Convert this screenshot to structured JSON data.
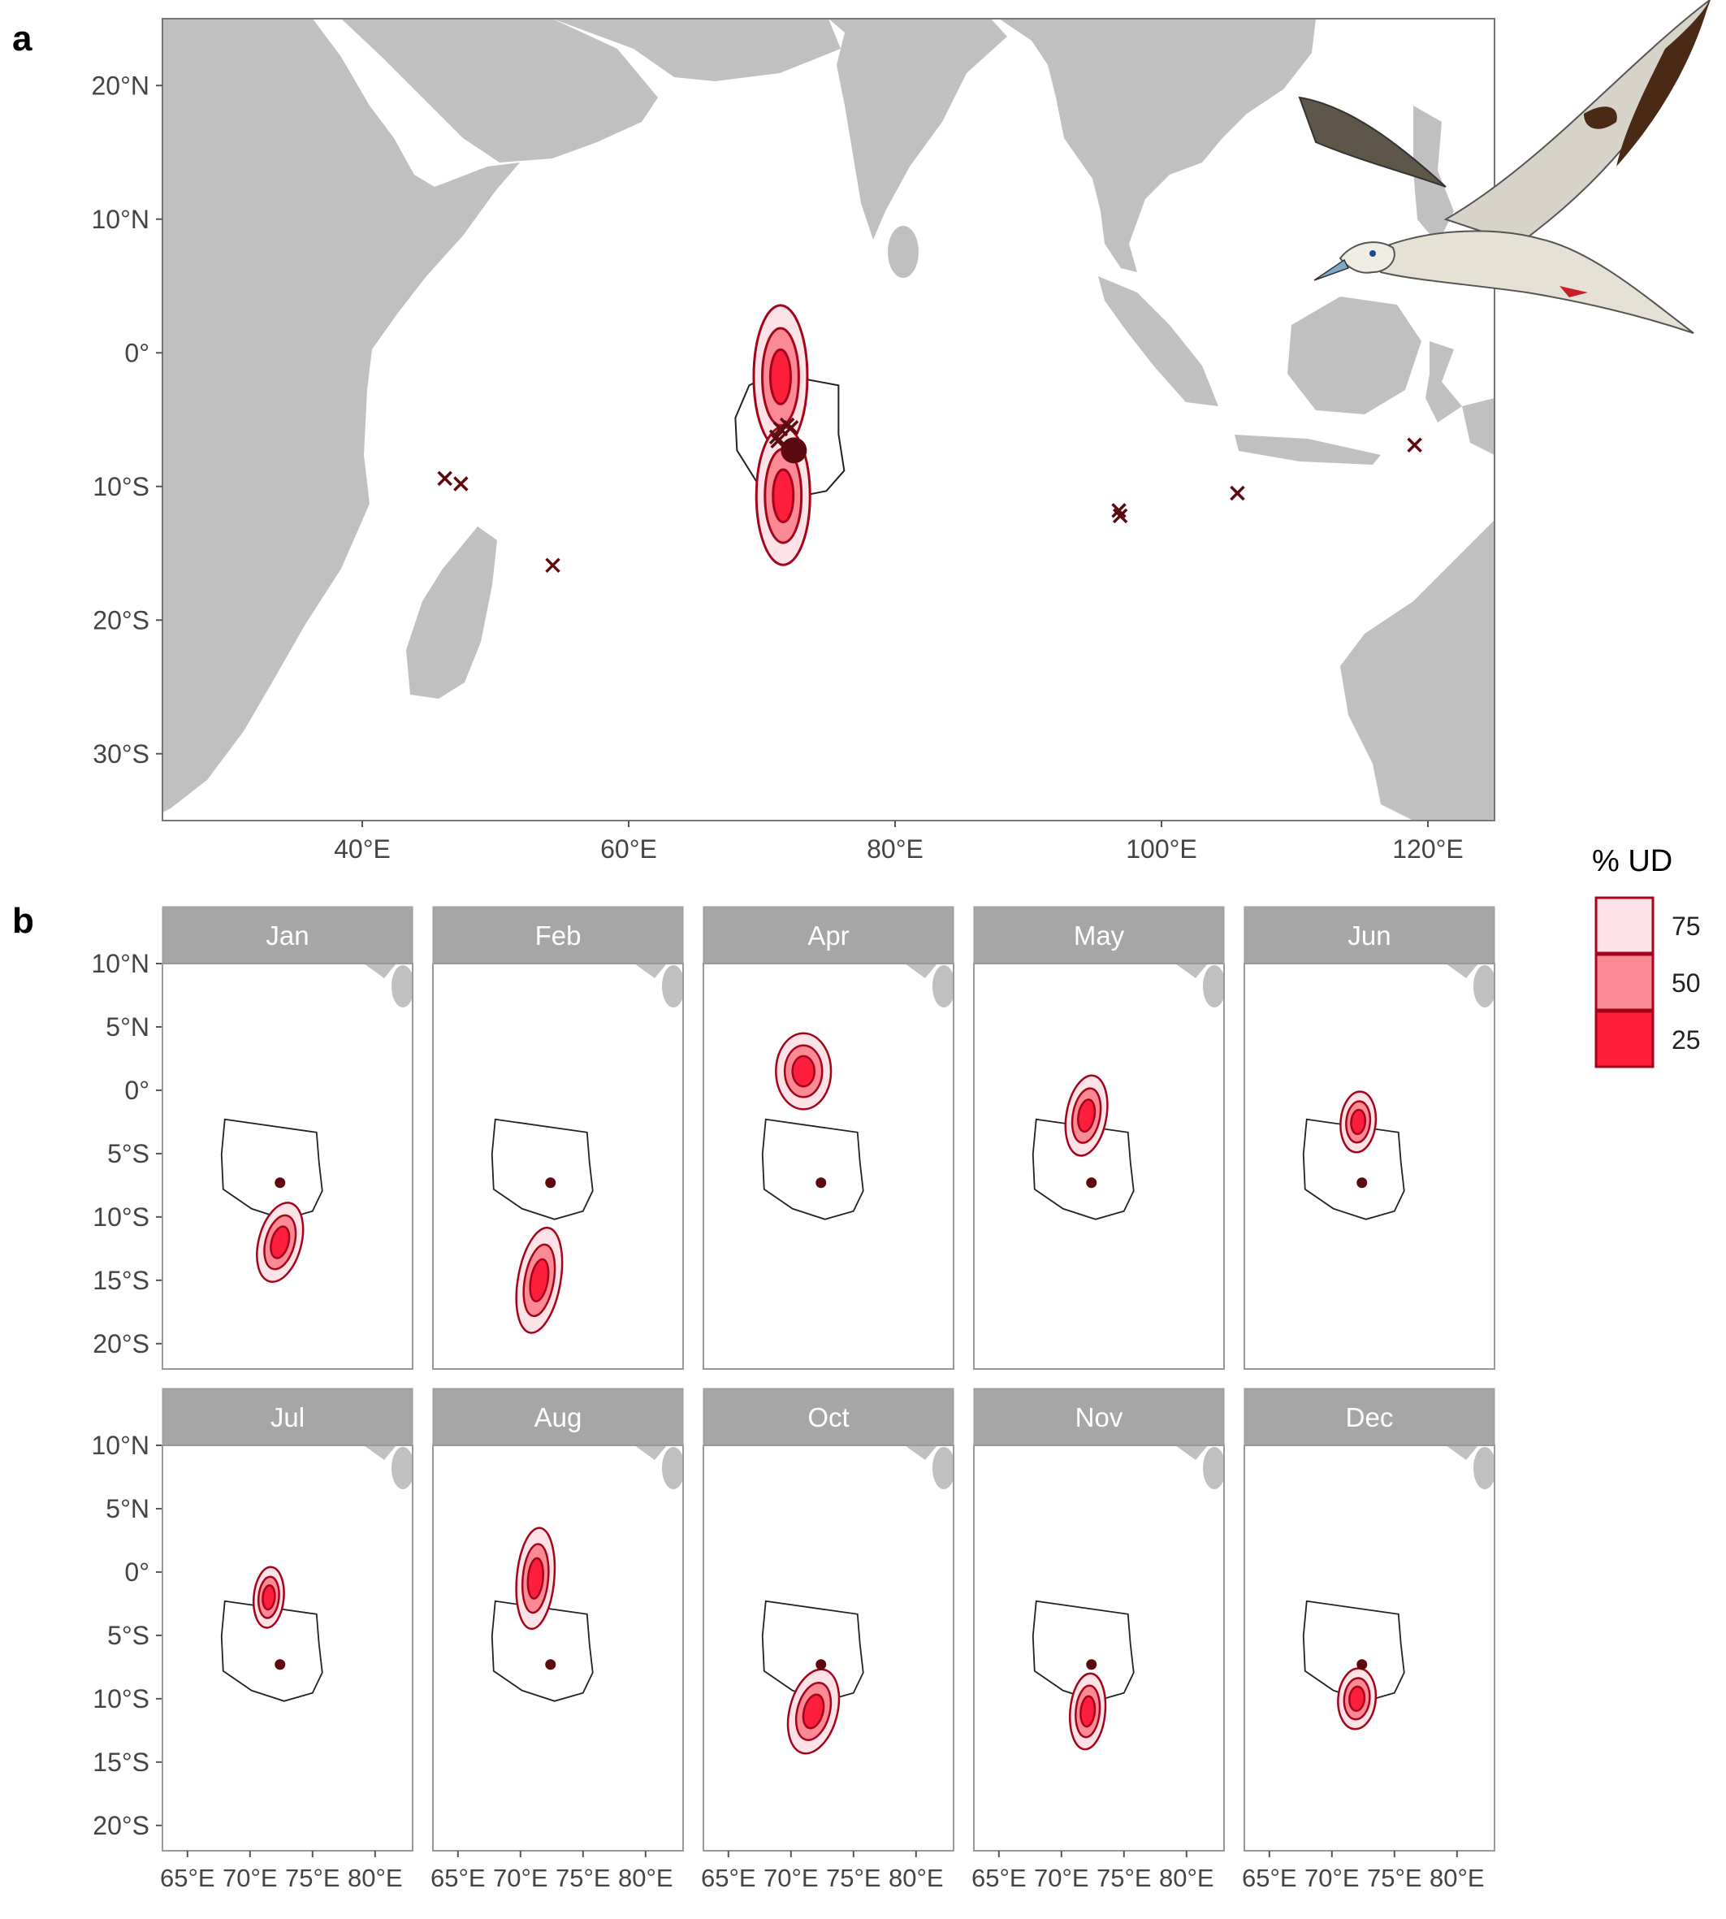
{
  "panel_a": {
    "label": "a",
    "lat_ticks": [
      "20°N",
      "10°N",
      "0°",
      "10°S",
      "20°S",
      "30°S"
    ],
    "lon_ticks": [
      "40°E",
      "60°E",
      "80°E",
      "100°E",
      "120°E"
    ],
    "lon_range": [
      25,
      125
    ],
    "lat_range": [
      -35,
      25
    ],
    "colony": {
      "lon": 72.4,
      "lat": -7.3
    },
    "recovery_sites": [
      {
        "lon": 46.2,
        "lat": -9.4
      },
      {
        "lon": 47.4,
        "lat": -9.8
      },
      {
        "lon": 54.3,
        "lat": -15.9
      },
      {
        "lon": 71.1,
        "lat": -6.3
      },
      {
        "lon": 71.4,
        "lat": -5.7
      },
      {
        "lon": 71.9,
        "lat": -5.4
      },
      {
        "lon": 72.2,
        "lat": -5.6
      },
      {
        "lon": 71.2,
        "lat": -6.6
      },
      {
        "lon": 96.8,
        "lat": -11.8
      },
      {
        "lon": 96.9,
        "lat": -12.2
      },
      {
        "lon": 105.7,
        "lat": -10.5
      },
      {
        "lon": 119.0,
        "lat": -6.9
      }
    ]
  },
  "panel_b": {
    "label": "b",
    "lat_ticks": [
      "10°N",
      "5°N",
      "0°",
      "5°S",
      "10°S",
      "15°S",
      "20°S"
    ],
    "lon_ticks": [
      "65°E",
      "70°E",
      "75°E",
      "80°E"
    ],
    "lon_range": [
      63,
      83
    ],
    "lat_range": [
      -22,
      10
    ],
    "months": [
      {
        "name": "Jan",
        "lon": 72.4,
        "lat": -12.0,
        "rx": 1.7,
        "ry": 3.2,
        "tilt": 15
      },
      {
        "name": "Feb",
        "lon": 71.5,
        "lat": -15.0,
        "rx": 1.7,
        "ry": 4.2,
        "tilt": 10
      },
      {
        "name": "Apr",
        "lon": 71.0,
        "lat": 1.5,
        "rx": 2.2,
        "ry": 3.0,
        "tilt": 0
      },
      {
        "name": "May",
        "lon": 72.0,
        "lat": -2.0,
        "rx": 1.6,
        "ry": 3.2,
        "tilt": 10
      },
      {
        "name": "Jun",
        "lon": 72.1,
        "lat": -2.5,
        "rx": 1.4,
        "ry": 2.4,
        "tilt": 5
      },
      {
        "name": "Jul",
        "lon": 71.5,
        "lat": -2.0,
        "rx": 1.2,
        "ry": 2.4,
        "tilt": 5
      },
      {
        "name": "Aug",
        "lon": 71.2,
        "lat": -0.5,
        "rx": 1.5,
        "ry": 4.0,
        "tilt": 5
      },
      {
        "name": "Oct",
        "lon": 71.8,
        "lat": -11.0,
        "rx": 1.9,
        "ry": 3.4,
        "tilt": 15
      },
      {
        "name": "Nov",
        "lon": 72.1,
        "lat": -11.0,
        "rx": 1.4,
        "ry": 3.0,
        "tilt": 5
      },
      {
        "name": "Dec",
        "lon": 72.0,
        "lat": -10.0,
        "rx": 1.5,
        "ry": 2.4,
        "tilt": 5
      }
    ]
  },
  "legend": {
    "title": "% UD",
    "items": [
      {
        "label": "75",
        "color": "#FDE3E7"
      },
      {
        "label": "50",
        "color": "#FC8A95"
      },
      {
        "label": "25",
        "color": "#FC1E3A"
      }
    ]
  },
  "colors": {
    "land": "#C0C0C0",
    "contour_stroke": "#A5051B",
    "marker": "#5C0A0F",
    "strip": "#A6A6A6"
  }
}
